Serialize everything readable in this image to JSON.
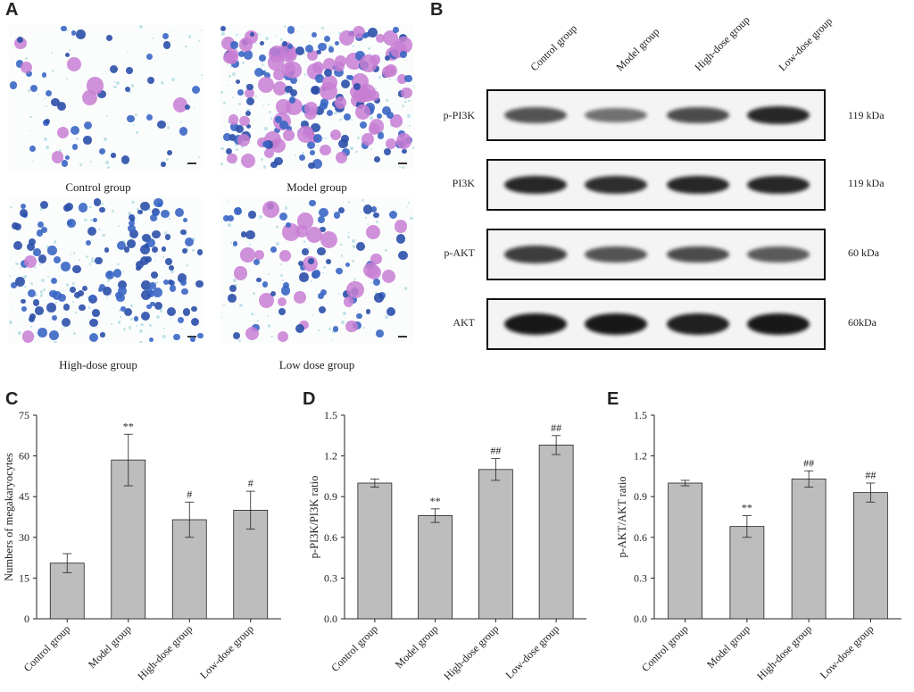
{
  "panels": {
    "A": {
      "letter": "A",
      "images": [
        {
          "caption": "Control group",
          "density": 0.25,
          "purple_fraction": 0.1
        },
        {
          "caption": "Model group",
          "density": 1.0,
          "purple_fraction": 0.45
        },
        {
          "caption": "High-dose group",
          "density": 0.7,
          "purple_fraction": 0.03
        },
        {
          "caption": "Low dose group",
          "density": 0.45,
          "purple_fraction": 0.3
        }
      ]
    },
    "B": {
      "letter": "B",
      "lanes": [
        "Control group",
        "Model group",
        "High-dose group",
        "Low-dose group"
      ],
      "blots": [
        {
          "name": "p-PI3K",
          "kda": "119 kDa",
          "intensity": [
            0.55,
            0.35,
            0.6,
            0.85
          ]
        },
        {
          "name": "PI3K",
          "kda": "119 kDa",
          "intensity": [
            0.85,
            0.8,
            0.85,
            0.85
          ]
        },
        {
          "name": "p-AKT",
          "kda": "60 kDa",
          "intensity": [
            0.7,
            0.55,
            0.6,
            0.5
          ]
        },
        {
          "name": "AKT",
          "kda": "60kDa",
          "intensity": [
            0.95,
            0.95,
            0.9,
            0.95
          ]
        }
      ]
    },
    "C": {
      "letter": "C"
    },
    "D": {
      "letter": "D"
    },
    "E": {
      "letter": "E"
    }
  },
  "chart_data": [
    {
      "type": "bar",
      "panel": "C",
      "categories": [
        "Control group",
        "Model group",
        "High-dose group",
        "Low-dose group"
      ],
      "values": [
        20.5,
        58.5,
        36.5,
        40
      ],
      "errors": [
        3.5,
        9.5,
        6.5,
        7
      ],
      "annotations": [
        "",
        "**",
        "#",
        "#"
      ],
      "ylabel": "Numbers of megakaryocytes",
      "ylim": [
        0,
        75
      ],
      "yticks": [
        "0",
        "15",
        "30",
        "45",
        "60",
        "75"
      ],
      "color": "#bdbdbd"
    },
    {
      "type": "bar",
      "panel": "D",
      "categories": [
        "Control group",
        "Model group",
        "High-dose group",
        "Low-dose group"
      ],
      "values": [
        1.0,
        0.76,
        1.1,
        1.28
      ],
      "errors": [
        0.03,
        0.05,
        0.08,
        0.07
      ],
      "annotations": [
        "",
        "**",
        "##",
        "##"
      ],
      "ylabel": "p-PI3K/PI3K ratio",
      "ylim": [
        0,
        1.5
      ],
      "yticks": [
        "0.0",
        "0.3",
        "0.6",
        "0.9",
        "1.2",
        "1.5"
      ],
      "color": "#bdbdbd"
    },
    {
      "type": "bar",
      "panel": "E",
      "categories": [
        "Control group",
        "Model group",
        "High-dose group",
        "Low-dose group"
      ],
      "values": [
        1.0,
        0.68,
        1.03,
        0.93
      ],
      "errors": [
        0.02,
        0.08,
        0.06,
        0.07
      ],
      "annotations": [
        "",
        "**",
        "##",
        "##"
      ],
      "ylabel": "p-AKT/AKT ratio",
      "ylim": [
        0,
        1.5
      ],
      "yticks": [
        "0.0",
        "0.3",
        "0.6",
        "0.9",
        "1.2",
        "1.5"
      ],
      "color": "#bdbdbd"
    }
  ]
}
